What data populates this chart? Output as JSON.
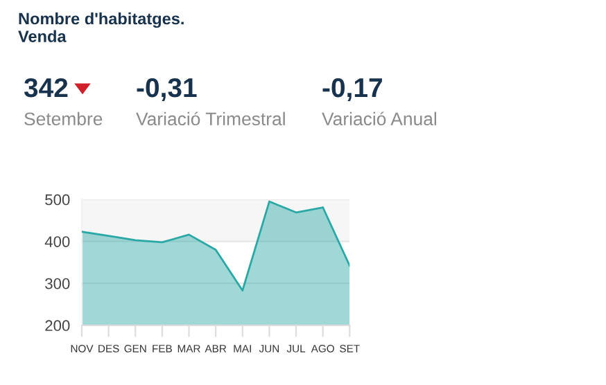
{
  "chart_data": {
    "type": "area",
    "title": "Nombre d'habitatges.\nVenda",
    "annotations": [
      "342",
      "Setembre",
      "-0,31",
      "Variació Trimestral",
      "-0,17",
      "Variació Anual"
    ],
    "categories": [
      "NOV",
      "DES",
      "GEN",
      "FEB",
      "MAR",
      "ABR",
      "MAI",
      "JUN",
      "JUL",
      "AGO",
      "SET"
    ],
    "series": [
      {
        "color": "#2aa8a6",
        "values": [
          423,
          413,
          403,
          398,
          416,
          380,
          283,
          495,
          469,
          481,
          342
        ]
      }
    ],
    "ylim": [
      200,
      500
    ],
    "yticks": [
      200,
      300,
      400,
      500
    ],
    "grid": "y",
    "bands": [
      {
        "axis": "y",
        "from": 400,
        "to": 500,
        "color": "#f6f6f6"
      }
    ]
  }
}
